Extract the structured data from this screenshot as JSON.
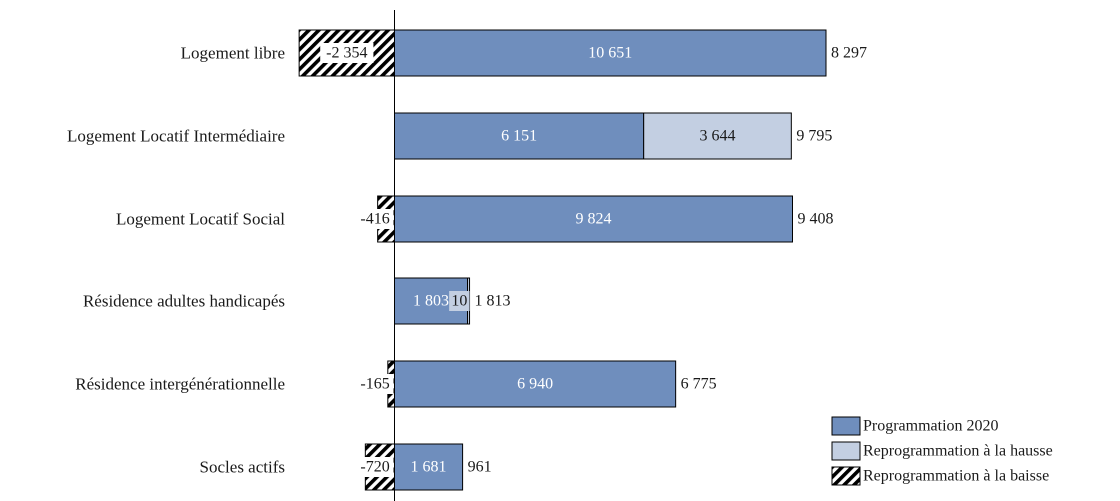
{
  "chart_data": {
    "type": "bar",
    "orientation": "horizontal",
    "stacked": true,
    "categories": [
      "Logement libre",
      "Logement Locatif Intermédiaire",
      "Logement Locatif Social",
      "Résidence adultes handicapés",
      "Résidence intergénérationnelle",
      "Socles actifs"
    ],
    "series": [
      {
        "name": "Programmation 2020",
        "color": "#6f8ebd",
        "pattern": "solid",
        "values": [
          10651,
          6151,
          9824,
          1803,
          6940,
          1681
        ],
        "labels": [
          "10 651",
          "6 151",
          "9 824",
          "1 803",
          "6 940",
          "1 681"
        ]
      },
      {
        "name": "Reprogrammation à la hausse",
        "color": "#c3cfe2",
        "pattern": "solid",
        "values": [
          0,
          3644,
          0,
          10,
          0,
          0
        ],
        "labels": [
          "",
          "3 644",
          "",
          "10",
          "",
          ""
        ]
      },
      {
        "name": "Reprogrammation à la baisse",
        "color": "#000000",
        "pattern": "hatch",
        "values": [
          -2354,
          0,
          -416,
          0,
          -165,
          -720
        ],
        "labels": [
          "-2 354",
          "",
          "-416",
          "",
          "-165",
          "-720"
        ]
      }
    ],
    "totals": [
      8297,
      9795,
      9408,
      1813,
      6775,
      961
    ],
    "total_labels": [
      "8 297",
      "9 795",
      "9 408",
      "1 813",
      "6 775",
      "961"
    ],
    "xlim": [
      -2354,
      10651
    ],
    "grid": false,
    "legend_position": "bottom-right",
    "title": "",
    "xlabel": "",
    "ylabel": ""
  }
}
